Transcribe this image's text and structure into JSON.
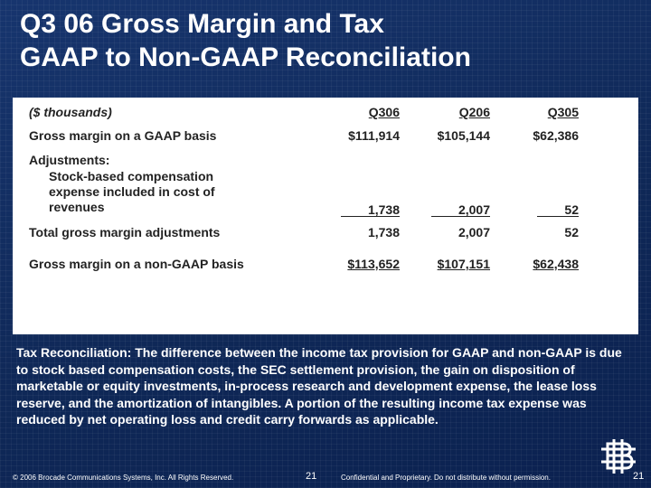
{
  "title": {
    "line1": "Q3 06 Gross Margin and Tax",
    "line2": "GAAP to Non-GAAP Reconciliation"
  },
  "table": {
    "units_label": "($ thousands)",
    "columns": [
      "Q306",
      "Q206",
      "Q305"
    ],
    "rows": {
      "gaap": {
        "label": "Gross margin on a GAAP basis",
        "values": [
          "$111,914",
          "$105,144",
          "$62,386"
        ]
      },
      "adjustments": {
        "label": "Adjustments:",
        "item_line1": "Stock-based compensation",
        "item_line2": "expense included in cost of",
        "item_line3": "revenues",
        "values": [
          "1,738",
          "2,007",
          "52"
        ]
      },
      "total": {
        "label": "Total gross margin adjustments",
        "values": [
          "1,738",
          "2,007",
          "52"
        ]
      },
      "non_gaap": {
        "label": "Gross margin on a non-GAAP basis",
        "values": [
          "$113,652",
          "$107,151",
          "$62,438"
        ]
      }
    }
  },
  "tax_reconciliation": "Tax Reconciliation:   The difference between the income tax provision for GAAP and non-GAAP is due to stock based compensation costs, the SEC settlement provision, the gain on disposition of marketable or equity investments, in-process research and development expense, the lease loss reserve, and the amortization of intangibles. A portion of the resulting income tax expense was reduced by net operating loss and credit carry forwards as applicable.",
  "footer": {
    "copyright": "© 2006 Brocade Communications Systems, Inc. All Rights Reserved.",
    "slide_number": "21",
    "confidential": "Confidential and Proprietary. Do not distribute without permission.",
    "page_number": "21"
  },
  "colors": {
    "background": "#102a5c",
    "panel": "#ffffff",
    "text_light": "#ffffff",
    "text_dark": "#222222"
  },
  "icons": {
    "logo": "brocade-logo-icon"
  }
}
